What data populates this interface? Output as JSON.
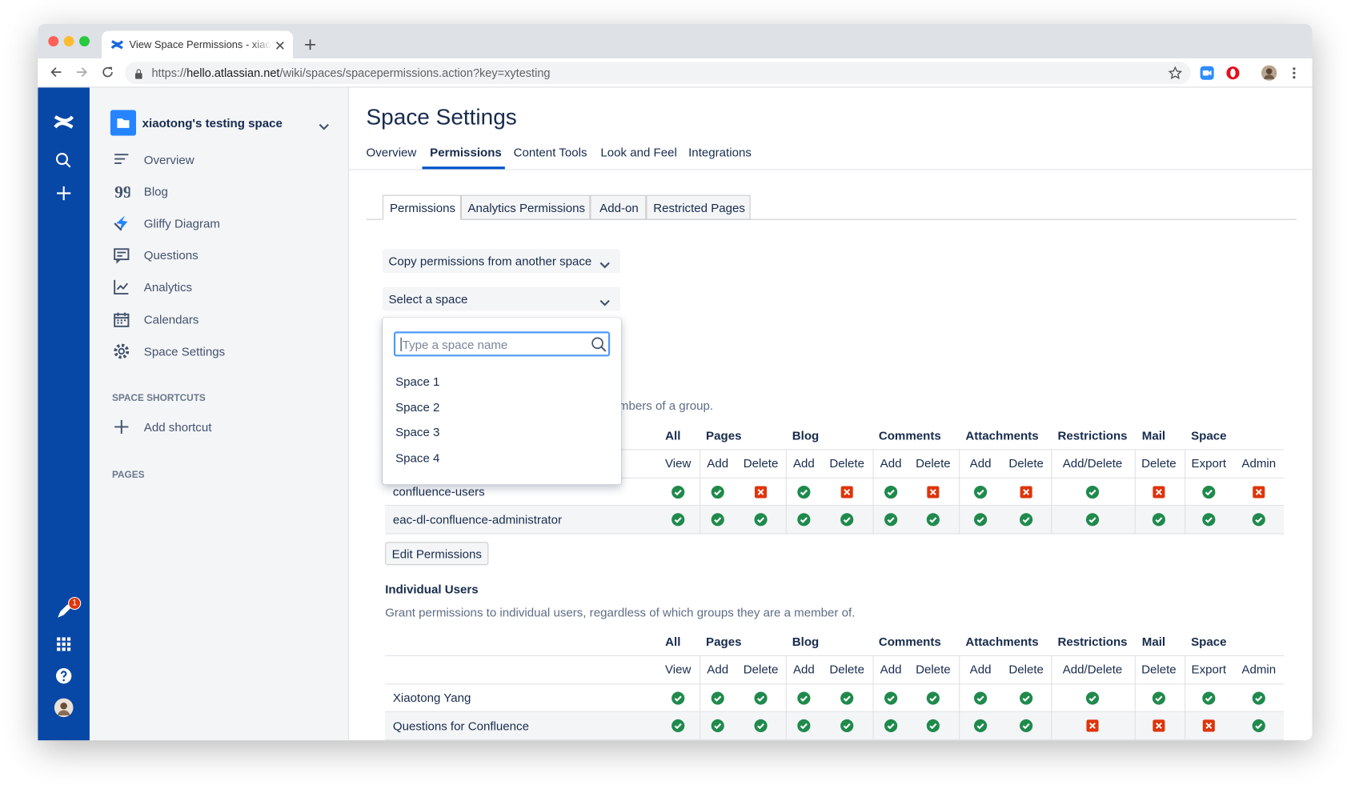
{
  "browser": {
    "tab_title": "View Space Permissions - xiao",
    "url": {
      "scheme": "https://",
      "host": "hello.atlassian.net",
      "path": "/wiki/spaces/spacepermissions.action?key=xytesting"
    }
  },
  "nav": {
    "notification_count": "1"
  },
  "sidebar": {
    "space_name": "xiaotong's testing space",
    "items": [
      "Overview",
      "Blog",
      "Gliffy Diagram",
      "Questions",
      "Analytics",
      "Calendars",
      "Space Settings"
    ],
    "shortcuts_heading": "SPACE SHORTCUTS",
    "add_shortcut": "Add shortcut",
    "pages_heading": "PAGES"
  },
  "header": {
    "title": "Space Settings",
    "tabs": [
      "Overview",
      "Permissions",
      "Content Tools",
      "Look and Feel",
      "Integrations"
    ],
    "active_tab": 1
  },
  "subtabs": {
    "items": [
      "Permissions",
      "Analytics Permissions",
      "Add-on",
      "Restricted Pages"
    ],
    "active": 0
  },
  "copy_dropdown": "Copy permissions from another space",
  "space_select": {
    "label": "Select a space",
    "placeholder": "Type a space name",
    "options": [
      "Space 1",
      "Space 2",
      "Space 3",
      "Space 4"
    ]
  },
  "column_groups": [
    {
      "name": "All",
      "columns": [
        "View"
      ]
    },
    {
      "name": "Pages",
      "columns": [
        "Add",
        "Delete"
      ]
    },
    {
      "name": "Blog",
      "columns": [
        "Add",
        "Delete"
      ]
    },
    {
      "name": "Comments",
      "columns": [
        "Add",
        "Delete"
      ]
    },
    {
      "name": "Attachments",
      "columns": [
        "Add",
        "Delete"
      ]
    },
    {
      "name": "Restrictions",
      "columns": [
        "Add/Delete"
      ]
    },
    {
      "name": "Mail",
      "columns": [
        "Delete"
      ]
    },
    {
      "name": "Space",
      "columns": [
        "Export",
        "Admin"
      ]
    }
  ],
  "groups": {
    "description_fragment": "mbers of a group.",
    "rows": [
      {
        "name": "confluence-users",
        "permissions": [
          true,
          true,
          false,
          true,
          false,
          true,
          false,
          true,
          false,
          true,
          false,
          true,
          false
        ]
      },
      {
        "name": "eac-dl-confluence-administrator",
        "permissions": [
          true,
          true,
          true,
          true,
          true,
          true,
          true,
          true,
          true,
          true,
          true,
          true,
          true
        ]
      }
    ]
  },
  "edit_button": "Edit Permissions",
  "individuals": {
    "title": "Individual Users",
    "description": "Grant permissions to individual users, regardless of which groups they are a member of.",
    "rows": [
      {
        "name": "Xiaotong Yang",
        "permissions": [
          true,
          true,
          true,
          true,
          true,
          true,
          true,
          true,
          true,
          true,
          true,
          true,
          true
        ]
      },
      {
        "name": "Questions for Confluence",
        "permissions": [
          true,
          true,
          true,
          true,
          true,
          true,
          true,
          true,
          true,
          false,
          false,
          false,
          true
        ]
      }
    ]
  }
}
